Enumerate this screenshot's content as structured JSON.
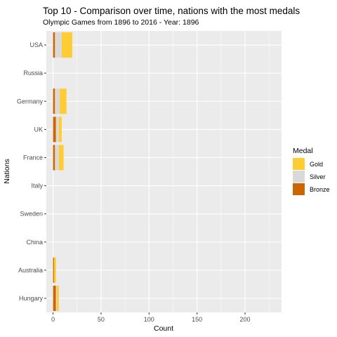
{
  "chart_data": {
    "type": "bar",
    "orientation": "horizontal",
    "stacking": "stacked",
    "title": "Top 10 - Comparison over time, nations with the most medals",
    "subtitle": "Olympic Games from 1896 to 2016 - Year: 1896",
    "xlabel": "Count",
    "ylabel": "Nations",
    "xlim": [
      -7,
      238
    ],
    "x_ticks": [
      0,
      50,
      100,
      150,
      200
    ],
    "categories": [
      "USA",
      "Russia",
      "Germany",
      "UK",
      "France",
      "Italy",
      "Sweden",
      "China",
      "Australia",
      "Hungary"
    ],
    "series": [
      {
        "name": "Bronze",
        "color": "#CC6600",
        "values": [
          2,
          0,
          2,
          3,
          2,
          0,
          0,
          0,
          1,
          3
        ]
      },
      {
        "name": "Silver",
        "color": "#D9D9D9",
        "values": [
          7,
          0,
          5,
          3,
          4,
          0,
          0,
          0,
          0,
          1
        ]
      },
      {
        "name": "Gold",
        "color": "#FFCC33",
        "values": [
          11,
          0,
          7,
          3,
          5,
          0,
          0,
          0,
          2,
          2
        ]
      }
    ],
    "legend": {
      "title": "Medal",
      "order": [
        "Gold",
        "Silver",
        "Bronze"
      ],
      "position": "right"
    },
    "grid": true,
    "panel_background": "#EBEBEB",
    "grid_color": "#FFFFFF"
  }
}
